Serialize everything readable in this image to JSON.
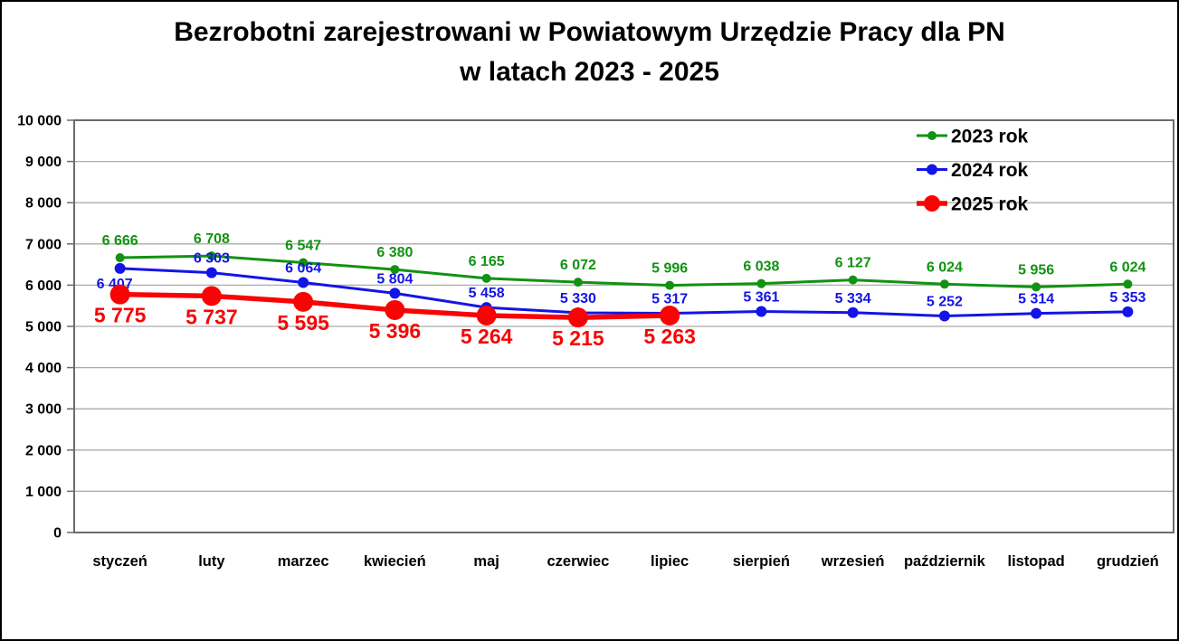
{
  "title": {
    "line1": "Bezrobotni zarejestrowani w Powiatowym Urzędzie Pracy dla PN",
    "line2": "w latach 2023 - 2025"
  },
  "chart_data": {
    "type": "line",
    "title": "Bezrobotni zarejestrowani w Powiatowym Urzędzie Pracy dla PN w latach 2023 - 2025",
    "categories": [
      "styczeń",
      "luty",
      "marzec",
      "kwiecień",
      "maj",
      "czerwiec",
      "lipiec",
      "sierpień",
      "wrzesień",
      "październik",
      "listopad",
      "grudzień"
    ],
    "series": [
      {
        "name": "2023 rok",
        "color": "#129212",
        "values": [
          6666,
          6708,
          6547,
          6380,
          6165,
          6072,
          5996,
          6038,
          6127,
          6024,
          5956,
          6024
        ],
        "marker_size": 5,
        "legend_marker_size": 5,
        "line_width": 3,
        "label_dy": -14,
        "label_font_size": 16,
        "label_dy_overrides": {},
        "label_dx_overrides": {}
      },
      {
        "name": "2024 rok",
        "color": "#1414E6",
        "values": [
          6407,
          6303,
          6064,
          5804,
          5458,
          5330,
          5317,
          5361,
          5334,
          5252,
          5314,
          5353
        ],
        "marker_size": 6,
        "legend_marker_size": 6,
        "line_width": 3,
        "label_dy": -11,
        "label_font_size": 16,
        "label_dy_overrides": {
          "0": 22
        },
        "label_dx_overrides": {
          "0": -6
        }
      },
      {
        "name": "2025 rok",
        "color": "#F90404",
        "values": [
          5775,
          5737,
          5595,
          5396,
          5264,
          5215,
          5263,
          null,
          null,
          null,
          null,
          null
        ],
        "marker_size": 11,
        "legend_marker_size": 9,
        "line_width": 5.5,
        "label_dy": 31,
        "label_font_size": 23,
        "label_dy_overrides": {},
        "label_dx_overrides": {}
      }
    ],
    "ylim": [
      0,
      10000
    ],
    "ytick_step": 1000,
    "ytick_labels": [
      "0",
      "1 000",
      "2 000",
      "3 000",
      "4 000",
      "5 000",
      "6 000",
      "7 000",
      "8 000",
      "9 000",
      "10 000"
    ],
    "grid": true,
    "legend_position": "top-right",
    "legend_labels": [
      "2023 rok",
      "2024 rok",
      "2025 rok"
    ],
    "gridline_color": "#ABABAB",
    "border_color": "#6B6B6B",
    "axis_label_color": "#000000",
    "number_format": "space-thousands"
  }
}
